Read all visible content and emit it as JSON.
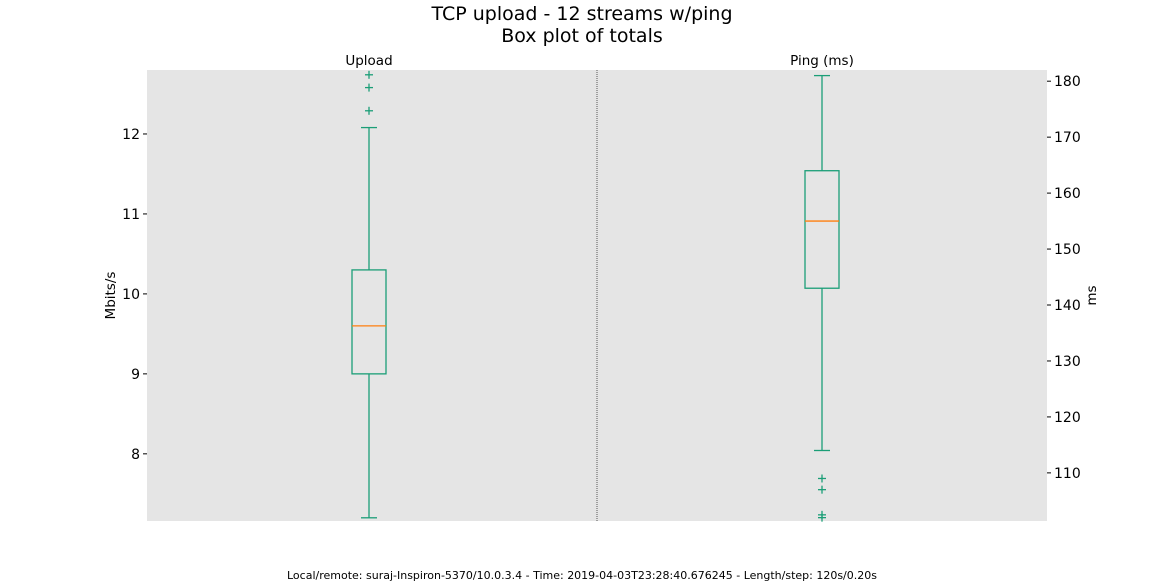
{
  "chart_data": {
    "type": "boxplot",
    "title_lines": [
      "TCP upload - 12 streams w/ping",
      "Box plot of totals"
    ],
    "footer": "Local/remote: suraj-Inspiron-5370/10.0.3.4 - Time: 2019-04-03T23:28:40.676245 - Length/step: 120s/0.20s",
    "background": "#e5e5e5",
    "box_color": "#1b9e77",
    "median_color": "#ff7f0e",
    "panels": [
      {
        "title": "Upload",
        "ylabel": "Mbits/s",
        "axis_side": "left",
        "ylim": [
          7.16,
          12.8
        ],
        "yticks": [
          8,
          9,
          10,
          11,
          12
        ],
        "tick_labels": [
          "8",
          "9",
          "10",
          "11",
          "12"
        ],
        "whisker_low": 7.2,
        "q1": 9.0,
        "median": 9.6,
        "q3": 10.3,
        "whisker_high": 12.08,
        "outliers": [
          12.29,
          12.58,
          12.74
        ]
      },
      {
        "title": "Ping (ms)",
        "ylabel": "ms",
        "axis_side": "right",
        "ylim": [
          101.4,
          182.0
        ],
        "yticks": [
          110,
          120,
          130,
          140,
          150,
          160,
          170,
          180
        ],
        "tick_labels": [
          "110",
          "120",
          "130",
          "140",
          "150",
          "160",
          "170",
          "180"
        ],
        "whisker_low": 114.0,
        "q1": 143.0,
        "median": 155.0,
        "q3": 164.0,
        "whisker_high": 181.0,
        "outliers": [
          109.0,
          107.0,
          102.5,
          102.0
        ]
      }
    ]
  }
}
